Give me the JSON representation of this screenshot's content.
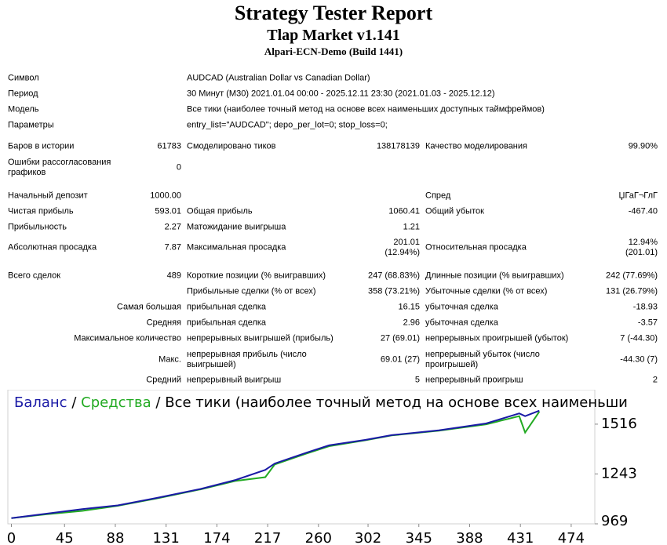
{
  "header": {
    "title": "Strategy Tester Report",
    "subtitle": "Tlap Market v1.141",
    "build": "Alpari-ECN-Demo (Build 1441)"
  },
  "info": [
    [
      "Символ",
      "AUDCAD (Australian Dollar vs Canadian Dollar)"
    ],
    [
      "Период",
      "30 Минут (M30) 2021.01.04 00:00 - 2025.12.11 23:30 (2021.01.03 - 2025.12.12)"
    ],
    [
      "Модель",
      "Все тики (наиболее точный метод на основе всех наименьших доступных таймфреймов)"
    ],
    [
      "Параметры",
      "entry_list=\"AUDCAD\"; depo_per_lot=0; stop_loss=0;"
    ]
  ],
  "stats": [
    [
      "Баров в истории",
      "61783",
      "Смоделировано тиков",
      "138178139",
      "Качество моделирования",
      "99.90%"
    ],
    [
      "Ошибки рассогласования графиков",
      "0",
      null,
      null,
      null,
      null
    ],
    [
      "Начальный депозит",
      "1000.00",
      null,
      null,
      "Спред",
      "ЏГаГ¬ГлГ"
    ],
    [
      "Чистая прибыль",
      "593.01",
      "Общая прибыль",
      "1060.41",
      "Общий убыток",
      "-467.40"
    ],
    [
      "Прибыльность",
      "2.27",
      "Матожидание выигрыша",
      "1.21",
      null,
      null
    ],
    [
      "Абсолютная просадка",
      "7.87",
      "Максимальная просадка",
      "201.01 (12.94%)",
      "Относительная просадка",
      "12.94% (201.01)"
    ],
    [
      "Всего сделок",
      "489",
      "Короткие позиции (% выигравших)",
      "247 (68.83%)",
      "Длинные позиции (% выигравших)",
      "242 (77.69%)"
    ],
    [
      null,
      null,
      "Прибыльные сделки (% от всех)",
      "358 (73.21%)",
      "Убыточные сделки (% от всех)",
      "131 (26.79%)"
    ],
    [
      null,
      "Самая большая",
      "прибыльная сделка",
      "16.15",
      "убыточная сделка",
      "-18.93"
    ],
    [
      null,
      "Средняя",
      "прибыльная сделка",
      "2.96",
      "убыточная сделка",
      "-3.57"
    ],
    [
      null,
      "Максимальное количество",
      "непрерывных выигрышей (прибыль)",
      "27 (69.01)",
      "непрерывных проигрышей (убыток)",
      "7 (-44.30)"
    ],
    [
      null,
      "Макс.",
      "непрерывная прибыль (число выигрышей)",
      "69.01 (27)",
      "непрерывный убыток (число проигрышей)",
      "-44.30 (7)"
    ],
    [
      null,
      "Средний",
      "непрерывный выигрыш",
      "5",
      "непрерывный проигрыш",
      "2"
    ]
  ],
  "chart_data": {
    "type": "line",
    "separator": "/",
    "subtitle": "Все тики (наиболее точный метод на основе всех наименьши",
    "x": [
      0,
      30,
      60,
      90,
      123,
      160,
      190,
      215,
      223,
      250,
      269,
      300,
      322,
      362,
      402,
      430,
      435,
      447
    ],
    "series": [
      {
        "name": "Баланс",
        "color": "#1a1aa6",
        "values": [
          1000,
          1025,
          1050,
          1070,
          1111,
          1160,
          1210,
          1265,
          1300,
          1360,
          1400,
          1430,
          1456,
          1482,
          1520,
          1575,
          1560,
          1590
        ]
      },
      {
        "name": "Средства",
        "color": "#22aa22",
        "values": [
          1000,
          1022,
          1040,
          1068,
          1108,
          1158,
          1205,
          1225,
          1295,
          1355,
          1395,
          1428,
          1454,
          1480,
          1515,
          1560,
          1470,
          1585
        ]
      }
    ],
    "xlim": [
      -3,
      494
    ],
    "xticks": [
      0,
      45,
      88,
      131,
      174,
      217,
      260,
      302,
      345,
      388,
      431,
      474
    ],
    "ylim": [
      969,
      1705
    ],
    "yticks": [
      969,
      1243,
      1516
    ]
  }
}
